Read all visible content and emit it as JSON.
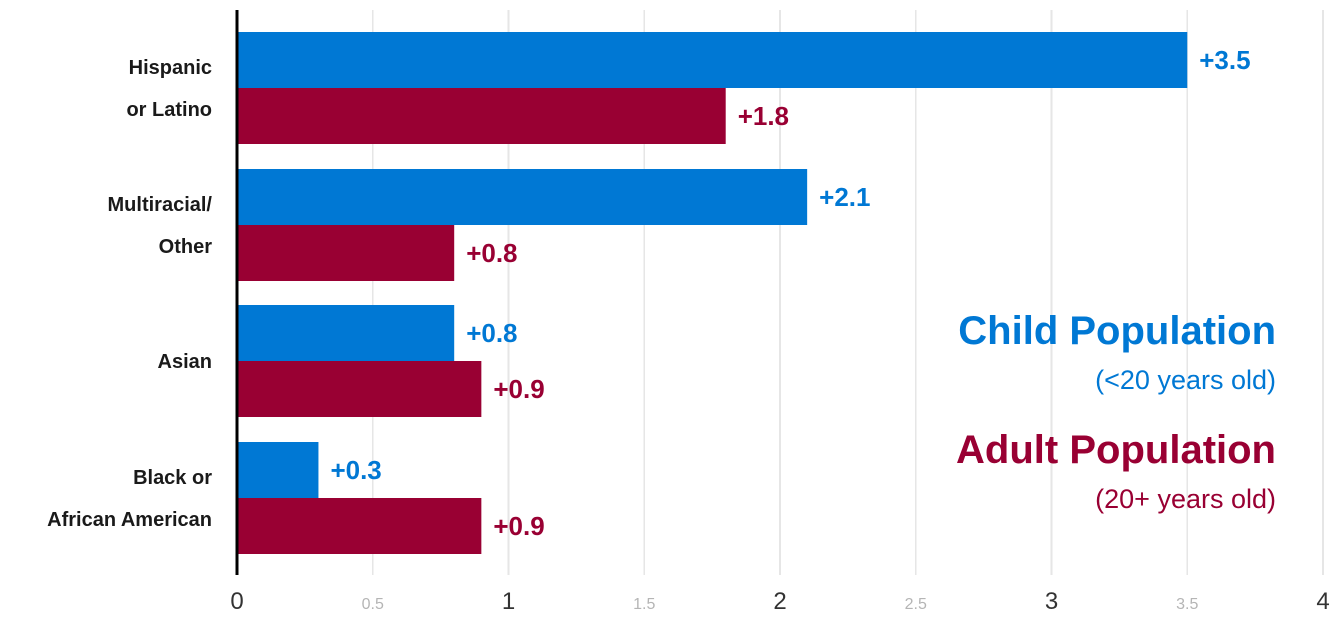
{
  "chart_data": {
    "type": "bar",
    "orientation": "horizontal",
    "categories": [
      [
        "Hispanic",
        "or Latino"
      ],
      [
        "Multiracial/",
        "Other"
      ],
      [
        "Asian"
      ],
      [
        "Black or",
        "African American"
      ]
    ],
    "series": [
      {
        "name": "Child Population",
        "subtitle": "(<20 years old)",
        "color": "#0078d4",
        "values": [
          3.5,
          2.1,
          0.8,
          0.3
        ],
        "labels": [
          "+3.5",
          "+2.1",
          "+0.8",
          "+0.3"
        ]
      },
      {
        "name": "Adult Population",
        "subtitle": "(20+ years old)",
        "color": "#990033",
        "values": [
          1.8,
          0.8,
          0.9,
          0.9
        ],
        "labels": [
          "+1.8",
          "+0.8",
          "+0.9",
          "+0.9"
        ]
      }
    ],
    "x_ticks_major": [
      "0",
      "1",
      "2",
      "3",
      "4"
    ],
    "x_ticks_minor": [
      "0.5",
      "1.5",
      "2.5",
      "3.5"
    ],
    "xlim": [
      0,
      4
    ],
    "grid": true,
    "legend_placement": "right"
  }
}
